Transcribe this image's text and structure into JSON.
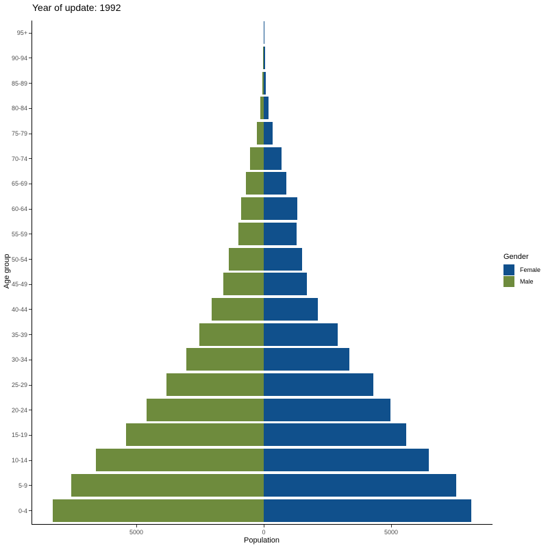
{
  "chart_data": {
    "type": "bar",
    "orientation": "horizontal",
    "subtype": "population-pyramid",
    "title": "Year of update: 1992",
    "xlabel": "Population",
    "ylabel": "Age group",
    "xlim": [
      -8500,
      8800
    ],
    "xticks": [
      -5000,
      0,
      5000
    ],
    "xtick_labels": [
      "5000",
      "0",
      "5000"
    ],
    "grid": false,
    "legend": {
      "title": "Gender",
      "position": "right",
      "entries": [
        {
          "label": "Female",
          "color": "#10508c"
        },
        {
          "label": "Male",
          "color": "#6e8b3d"
        }
      ]
    },
    "categories": [
      "0-4",
      "5-9",
      "10-14",
      "15-19",
      "20-24",
      "25-29",
      "30-34",
      "35-39",
      "40-44",
      "45-49",
      "50-54",
      "55-59",
      "60-64",
      "65-69",
      "70-74",
      "75-79",
      "80-84",
      "85-89",
      "90-94",
      "95+"
    ],
    "series": [
      {
        "name": "Female",
        "color": "#10508c",
        "values": [
          8150,
          7550,
          6480,
          5590,
          4970,
          4300,
          3360,
          2900,
          2120,
          1690,
          1500,
          1290,
          1320,
          890,
          700,
          350,
          190,
          80,
          55,
          20
        ]
      },
      {
        "name": "Male",
        "color": "#6e8b3d",
        "values": [
          8280,
          7550,
          6590,
          5400,
          4600,
          3820,
          3040,
          2530,
          2040,
          1590,
          1370,
          1000,
          890,
          700,
          540,
          270,
          135,
          55,
          27,
          5
        ]
      }
    ]
  }
}
